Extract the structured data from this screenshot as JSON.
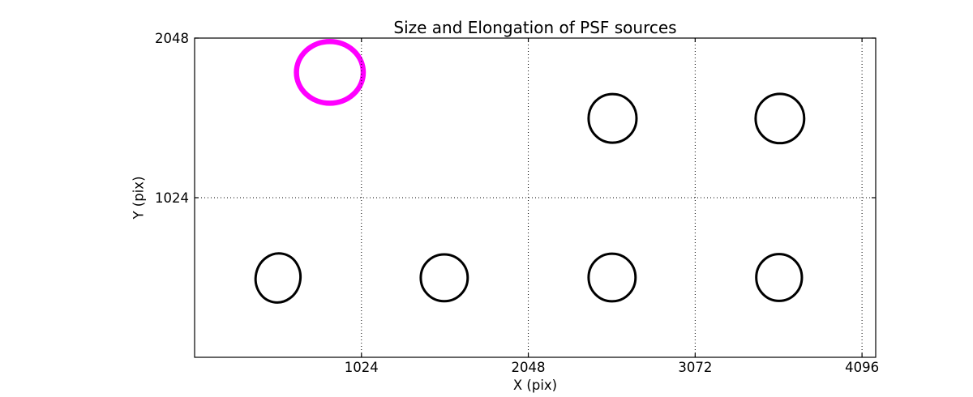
{
  "chart_data": {
    "type": "scatter",
    "title": "Size and Elongation of PSF sources",
    "xlabel": "X (pix)",
    "ylabel": "Y (pix)",
    "xlim": [
      0,
      4180
    ],
    "ylim": [
      0,
      2048
    ],
    "xticks": [
      1024,
      2048,
      3072,
      4096
    ],
    "yticks": [
      1024,
      2048
    ],
    "grid": {
      "visible": true,
      "line_style": "dotted",
      "color": "#000000"
    },
    "background_color": "#ffffff",
    "axis_color": "#000000",
    "highlight_color": "#ff00ff",
    "sources": [
      {
        "x": 830,
        "y": 1828,
        "rx": 205,
        "ry": 198,
        "angle_deg": 0,
        "color": "#ff00ff",
        "line_width": 6.5
      },
      {
        "x": 2565,
        "y": 1533,
        "rx": 147,
        "ry": 156,
        "angle_deg": 0,
        "color": "#000000",
        "line_width": 3
      },
      {
        "x": 3592,
        "y": 1532,
        "rx": 149,
        "ry": 158,
        "angle_deg": 0,
        "color": "#000000",
        "line_width": 3
      },
      {
        "x": 512,
        "y": 509,
        "rx": 137,
        "ry": 158,
        "angle_deg": 12,
        "color": "#000000",
        "line_width": 3
      },
      {
        "x": 1532,
        "y": 510,
        "rx": 144,
        "ry": 150,
        "angle_deg": 0,
        "color": "#000000",
        "line_width": 3
      },
      {
        "x": 2562,
        "y": 512,
        "rx": 144,
        "ry": 153,
        "angle_deg": 0,
        "color": "#000000",
        "line_width": 3
      },
      {
        "x": 3587,
        "y": 512,
        "rx": 140,
        "ry": 150,
        "angle_deg": 0,
        "color": "#000000",
        "line_width": 3
      }
    ]
  }
}
